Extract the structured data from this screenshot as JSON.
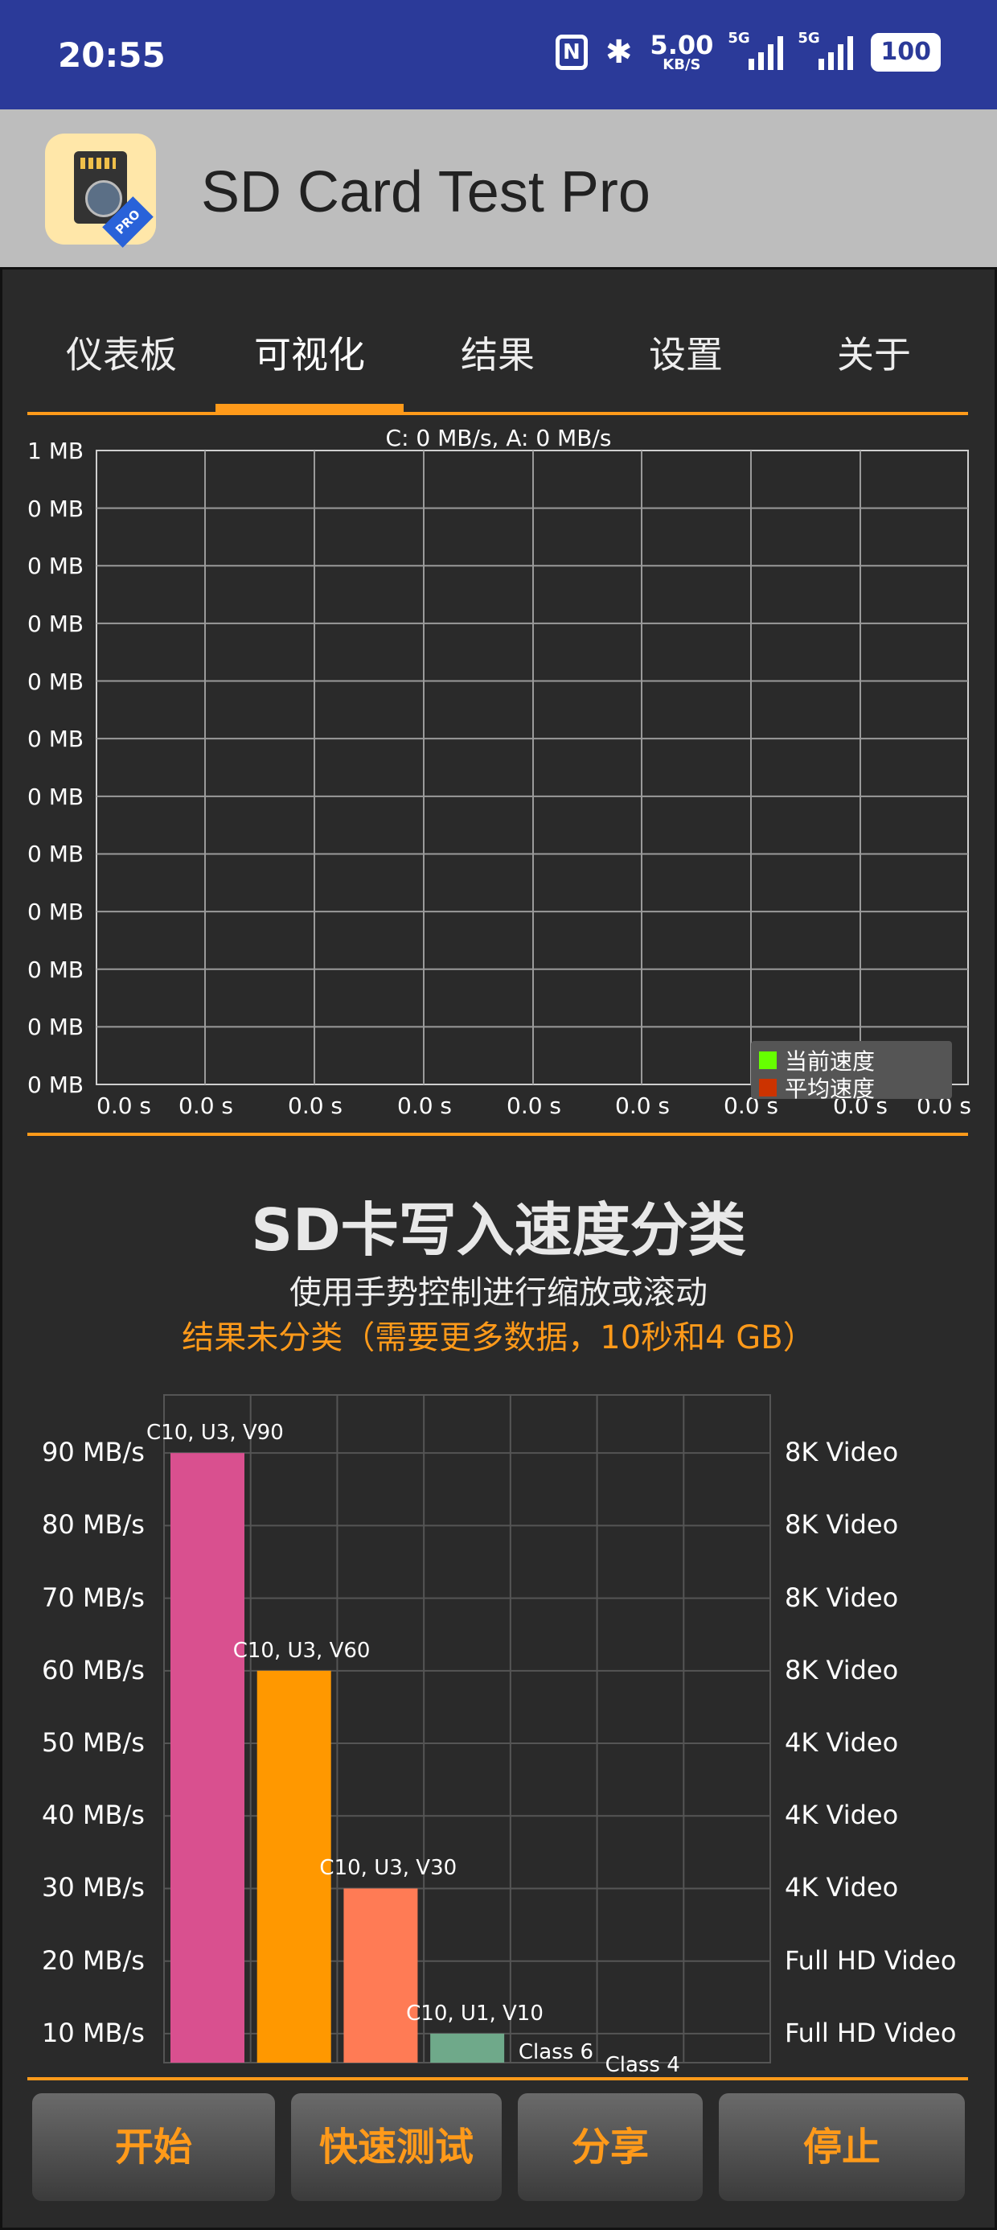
{
  "status_bar": {
    "time": "20:55",
    "nfc_icon": "N",
    "net_speed_value": "5.00",
    "net_speed_unit": "KB/S",
    "signal1_tag": "5G",
    "signal2_tag": "5G",
    "battery": "100"
  },
  "app": {
    "title": "SD Card Test Pro",
    "icon_badge": "PRO"
  },
  "tabs": [
    {
      "label": "仪表板"
    },
    {
      "label": "可视化"
    },
    {
      "label": "结果"
    },
    {
      "label": "设置"
    },
    {
      "label": "关于"
    }
  ],
  "active_tab_index": 1,
  "speed_chart": {
    "title": "C: 0 MB/s, A: 0 MB/s",
    "y_ticks": [
      "1 MB",
      "0 MB",
      "0 MB",
      "0 MB",
      "0 MB",
      "0 MB",
      "0 MB",
      "0 MB",
      "0 MB",
      "0 MB",
      "0 MB",
      "0 MB"
    ],
    "x_ticks": [
      "0.0 s",
      "0.0 s",
      "0.0 s",
      "0.0 s",
      "0.0 s",
      "0.0 s",
      "0.0 s",
      "0.0 s",
      "0.0 s"
    ],
    "legend": [
      {
        "name": "当前速度",
        "color": "#66ff00"
      },
      {
        "name": "平均速度",
        "color": "#cc3300"
      }
    ]
  },
  "classification": {
    "title": "SD卡写入速度分类",
    "subtitle": "使用手势控制进行缩放或滚动",
    "note": "结果未分类（需要更多数据，10秒和4 GB）"
  },
  "chart_data": {
    "type": "bar",
    "categories": [
      "C10, U3, V90",
      "C10, U3, V60",
      "C10, U3, V30",
      "C10, U1, V10",
      "Class 6",
      "Class 4"
    ],
    "values": [
      90,
      60,
      30,
      10,
      6,
      4
    ],
    "colors": [
      "#d9508f",
      "#ff9800",
      "#ff7b55",
      "#6fa98a",
      "#6fa98a",
      "#6fa98a"
    ],
    "ylim": [
      6,
      98
    ],
    "y_tick_labels": [
      "90 MB/s",
      "80 MB/s",
      "70 MB/s",
      "60 MB/s",
      "50 MB/s",
      "40 MB/s",
      "30 MB/s",
      "20 MB/s",
      "10 MB/s"
    ],
    "right_tick_labels": [
      "8K Video",
      "8K Video",
      "8K Video",
      "8K Video",
      "4K Video",
      "4K Video",
      "4K Video",
      "Full HD Video",
      "Full HD Video"
    ],
    "grid": true
  },
  "buttons": {
    "start": "开始",
    "quick_test": "快速测试",
    "share": "分享",
    "stop": "停止"
  },
  "colors": {
    "accent": "#ff9a1a",
    "status_bar": "#2b3a99",
    "app_bar": "#bdbdbd"
  }
}
